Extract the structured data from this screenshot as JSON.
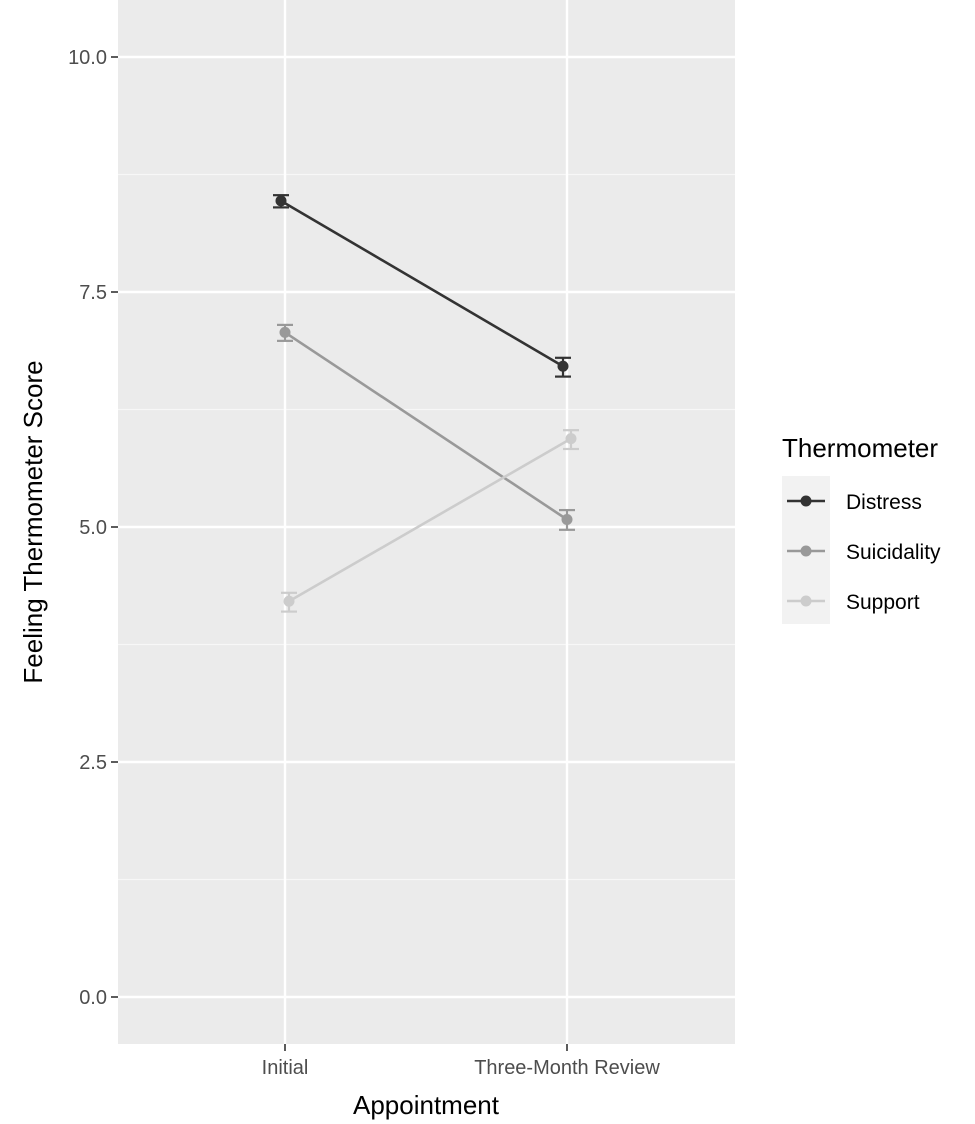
{
  "chart_data": {
    "type": "line",
    "title": "",
    "xlabel": "Appointment",
    "ylabel": "Feeling Thermometer Score",
    "categories": [
      "Initial",
      "Three-Month Review"
    ],
    "ylim": [
      -0.5,
      10.5
    ],
    "y_ticks": [
      0.0,
      2.5,
      5.0,
      7.5,
      10.0
    ],
    "y_tick_labels": [
      "0.0",
      "2.5",
      "5.0",
      "7.5",
      "10.0"
    ],
    "grid": true,
    "legend": {
      "title": "Thermometer",
      "placement": "right"
    },
    "series": [
      {
        "name": "Distress",
        "color": "#333333",
        "values": [
          8.47,
          6.71
        ],
        "error_low": [
          8.4,
          6.6
        ],
        "error_high": [
          8.53,
          6.8
        ]
      },
      {
        "name": "Suicidality",
        "color": "#999999",
        "values": [
          7.07,
          5.08
        ],
        "error_low": [
          6.98,
          4.97
        ],
        "error_high": [
          7.15,
          5.18
        ]
      },
      {
        "name": "Support",
        "color": "#cccccc",
        "values": [
          4.21,
          5.94
        ],
        "error_low": [
          4.1,
          5.83
        ],
        "error_high": [
          4.3,
          6.03
        ]
      }
    ]
  }
}
